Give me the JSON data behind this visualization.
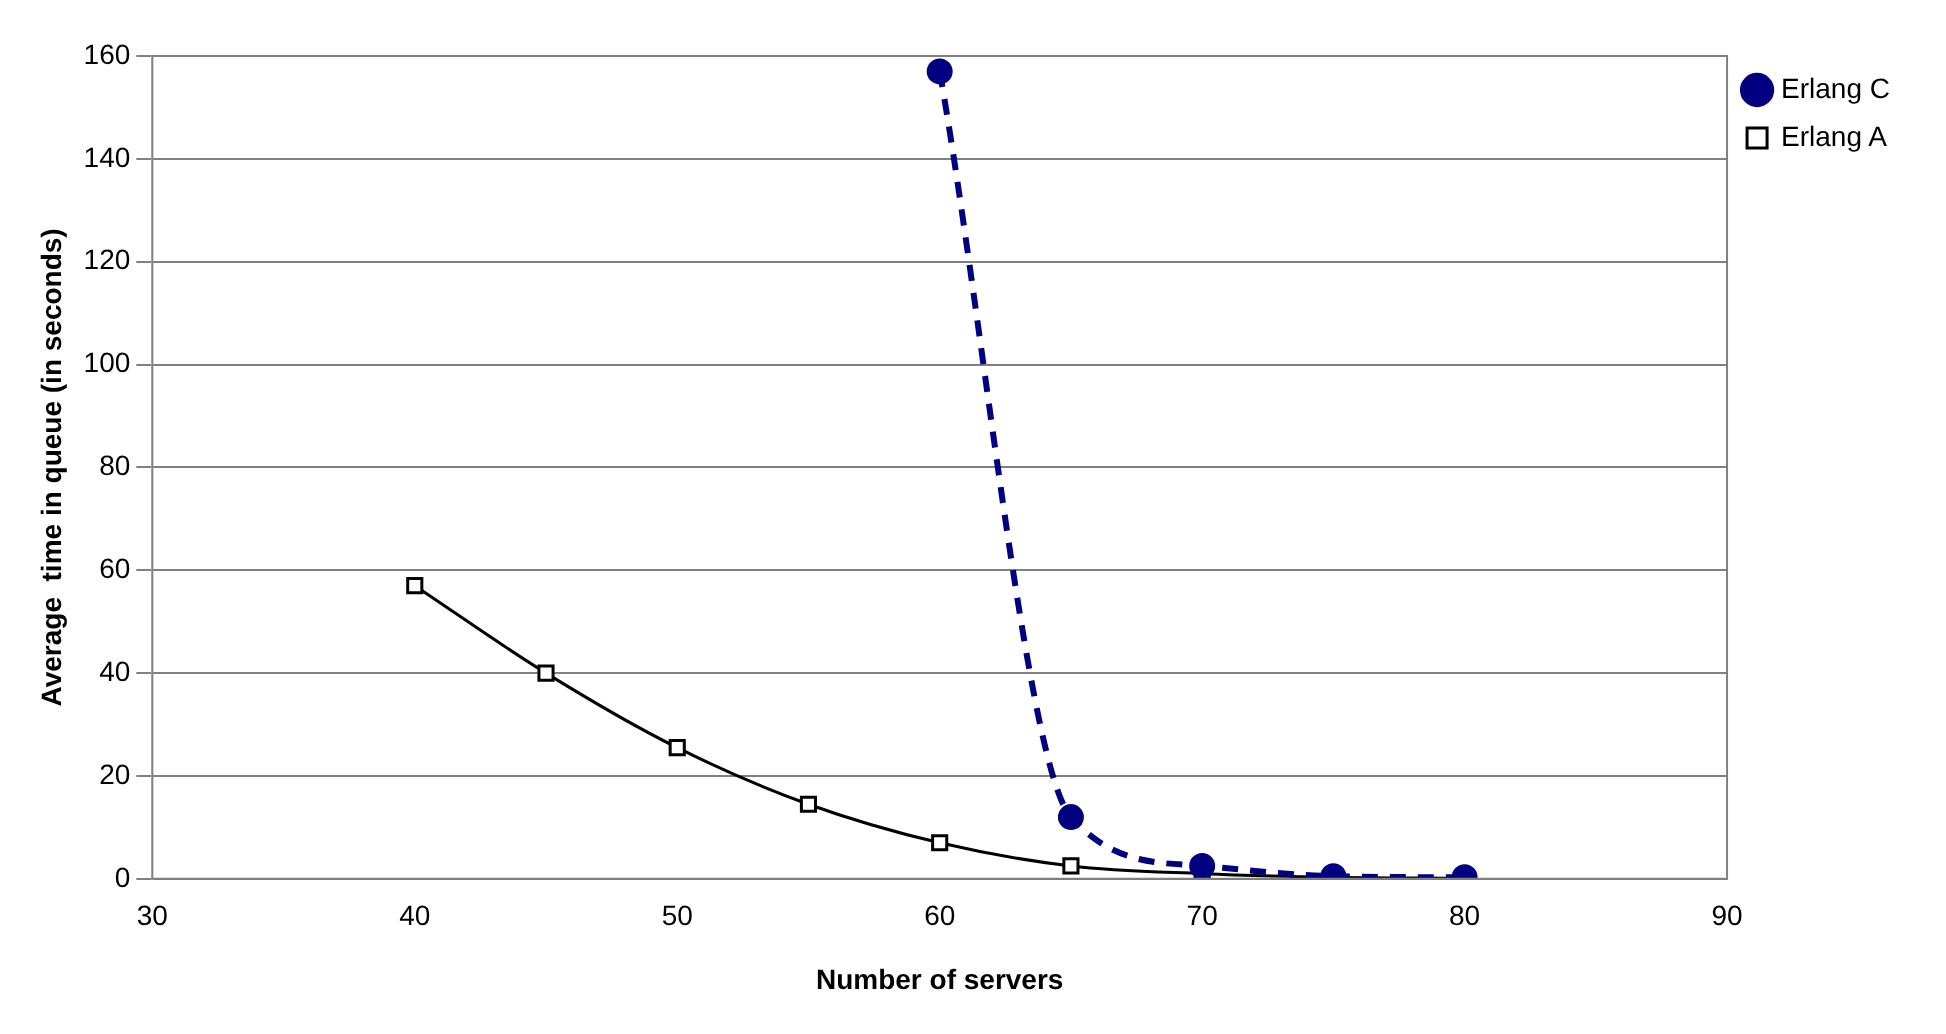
{
  "chart_data": {
    "type": "line",
    "xlabel": "Number of servers",
    "ylabel": "Average  time in queue (in seconds)",
    "xlim": [
      30,
      90
    ],
    "xticks": [
      30,
      40,
      50,
      60,
      70,
      80,
      90
    ],
    "ylim": [
      0,
      160
    ],
    "yticks": [
      0,
      20,
      40,
      60,
      80,
      100,
      120,
      140,
      160
    ],
    "grid": "y",
    "legend": "top right",
    "series": [
      {
        "name": "Erlang C",
        "color": "#000080",
        "marker": "circle",
        "line_style": "dashed",
        "x": [
          60,
          65,
          70,
          75,
          80
        ],
        "values": [
          157,
          12,
          2.5,
          0.5,
          0.3
        ]
      },
      {
        "name": "Erlang A",
        "color": "#000000",
        "marker": "square",
        "line_style": "solid",
        "x": [
          40,
          45,
          50,
          55,
          60,
          65,
          70,
          75,
          80
        ],
        "values": [
          57,
          40,
          25.5,
          14.5,
          7,
          2.5,
          1,
          0.3,
          0.1
        ]
      }
    ]
  }
}
